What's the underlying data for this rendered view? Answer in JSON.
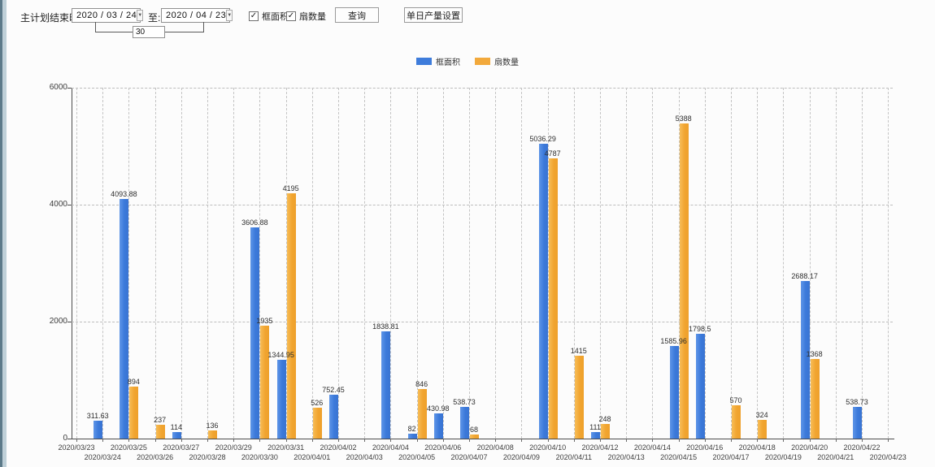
{
  "toolbar": {
    "label_plan_end": "主计划结束时间:",
    "date_from": "2020 / 03 / 24",
    "to_label": "至:",
    "date_to": "2020 / 04 / 23",
    "days_value": "30",
    "checkbox_frame_area": "框面积",
    "checkbox_sash_count": "扇数量",
    "checkbox_frame_area_checked": "✓",
    "checkbox_sash_count_checked": "✓",
    "query_button": "查询",
    "daily_output_button": "单日产量设置",
    "dropdown_glyph": "▼"
  },
  "legend": {
    "series1": "框面积",
    "series2": "扇数量"
  },
  "colors": {
    "blue": "#3e7cdb",
    "orange": "#f2a93c"
  },
  "chart_data": {
    "type": "bar",
    "title": "",
    "xlabel": "",
    "ylabel": "",
    "ylim": [
      0,
      6000
    ],
    "yticks": [
      0,
      2000,
      4000,
      6000
    ],
    "grid": "dashed",
    "legend_position": "top-center",
    "categories": [
      "2020/03/23",
      "2020/03/24",
      "2020/03/25",
      "2020/03/26",
      "2020/03/27",
      "2020/03/28",
      "2020/03/29",
      "2020/03/30",
      "2020/03/31",
      "2020/04/01",
      "2020/04/02",
      "2020/04/03",
      "2020/04/04",
      "2020/04/05",
      "2020/04/06",
      "2020/04/07",
      "2020/04/08",
      "2020/04/09",
      "2020/04/10",
      "2020/04/11",
      "2020/04/12",
      "2020/04/13",
      "2020/04/14",
      "2020/04/15",
      "2020/04/16",
      "2020/04/17",
      "2020/04/18",
      "2020/04/19",
      "2020/04/20",
      "2020/04/21",
      "2020/04/22",
      "2020/04/23"
    ],
    "series": [
      {
        "name": "框面积",
        "color": "#3e7cdb",
        "values": [
          null,
          311.63,
          4093.88,
          null,
          114,
          null,
          null,
          3606.88,
          1344.95,
          null,
          752.45,
          null,
          1838.81,
          82,
          430.98,
          538.73,
          null,
          null,
          5036.29,
          null,
          111,
          null,
          null,
          1585.96,
          1798.5,
          null,
          null,
          null,
          2688.17,
          null,
          538.73,
          null
        ]
      },
      {
        "name": "扇数量",
        "color": "#f2a93c",
        "values": [
          null,
          null,
          894,
          237,
          null,
          136,
          null,
          1935,
          4195,
          526,
          null,
          null,
          null,
          846,
          null,
          68,
          null,
          null,
          4787,
          1415,
          248,
          null,
          null,
          5388,
          null,
          570,
          324,
          null,
          1368,
          null,
          null,
          null
        ]
      }
    ]
  }
}
